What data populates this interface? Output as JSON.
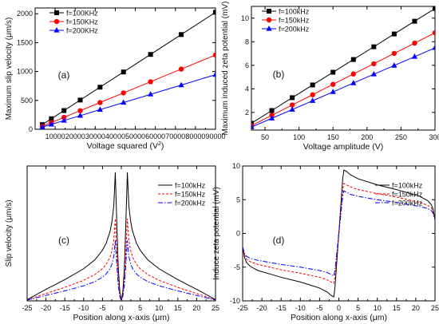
{
  "chart_data": [
    {
      "type": "line",
      "panel_label": "(a)",
      "xlabel": "Voltage squared (V",
      "xlabel_sup": "2",
      "xlabel_end": ")",
      "ylabel": "Maximum slip velocity (μm/s)",
      "xlim": [
        0,
        90000
      ],
      "ylim": [
        0,
        2100
      ],
      "xticks": [
        10000,
        20000,
        30000,
        40000,
        50000,
        60000,
        70000,
        80000,
        90000
      ],
      "yticks": [
        0,
        500,
        1000,
        1500,
        2000
      ],
      "legend": "top-left",
      "series": [
        {
          "name": "f=100KHz",
          "color": "#000000",
          "marker": "square",
          "x": [
            3600,
            8100,
            14400,
            22500,
            32400,
            44100,
            57600,
            72900,
            90000
          ],
          "y": [
            81,
            182,
            324,
            506,
            729,
            992,
            1296,
            1640,
            2025
          ]
        },
        {
          "name": "f=150KHz",
          "color": "#ff0000",
          "marker": "circle",
          "x": [
            3600,
            8100,
            14400,
            22500,
            32400,
            44100,
            57600,
            72900,
            90000
          ],
          "y": [
            51,
            116,
            206,
            322,
            463,
            630,
            823,
            1042,
            1286
          ]
        },
        {
          "name": "f=200KHz",
          "color": "#0000ff",
          "marker": "triangle",
          "x": [
            3600,
            8100,
            14400,
            22500,
            32400,
            44100,
            57600,
            72900,
            90000
          ],
          "y": [
            38,
            85,
            151,
            236,
            340,
            463,
            605,
            765,
            945
          ]
        }
      ]
    },
    {
      "type": "line",
      "panel_label": "(b)",
      "xlabel": "Voltage amplitude (V)",
      "ylabel": "Maximum induced zeta potential (mV)",
      "xlim": [
        30,
        300
      ],
      "ylim": [
        0.5,
        11
      ],
      "xticks": [
        50,
        100,
        150,
        200,
        250,
        300
      ],
      "yticks": [
        2,
        4,
        6,
        8,
        10
      ],
      "legend": "top-left",
      "series": [
        {
          "name": "f=100kHz",
          "color": "#000000",
          "marker": "square",
          "x": [
            30,
            60,
            90,
            120,
            150,
            180,
            210,
            240,
            270,
            300
          ],
          "y": [
            1.08,
            2.16,
            3.25,
            4.33,
            5.41,
            6.49,
            7.57,
            8.66,
            9.74,
            10.82
          ]
        },
        {
          "name": "f=150kHz",
          "color": "#ff0000",
          "marker": "circle",
          "x": [
            30,
            60,
            90,
            120,
            150,
            180,
            210,
            240,
            270,
            300
          ],
          "y": [
            0.88,
            1.75,
            2.63,
            3.5,
            4.38,
            5.26,
            6.13,
            7.01,
            7.88,
            8.76
          ]
        },
        {
          "name": "f=200kHz",
          "color": "#0000ff",
          "marker": "triangle",
          "x": [
            30,
            60,
            90,
            120,
            150,
            180,
            210,
            240,
            270,
            300
          ],
          "y": [
            0.75,
            1.5,
            2.24,
            2.99,
            3.74,
            4.49,
            5.24,
            5.98,
            6.73,
            7.48
          ]
        }
      ]
    },
    {
      "type": "line",
      "panel_label": "(c)",
      "xlabel": "Position along x-axis (μm)",
      "ylabel": "Slip velocity (μm/s)",
      "xlim": [
        -25,
        25
      ],
      "ylim": [
        0,
        2100
      ],
      "xticks": [
        -25,
        -20,
        -15,
        -10,
        -5,
        0,
        5,
        10,
        15,
        20,
        25
      ],
      "yticks": [],
      "legend": "top-right",
      "series": [
        {
          "name": "f=100kHz",
          "color": "#000000",
          "dash": "",
          "x": [
            -25,
            -20,
            -15,
            -10,
            -7,
            -5,
            -4,
            -3,
            -2.5,
            -2,
            -1.6,
            -1.2,
            -0.8,
            -0.4,
            0,
            0.4,
            0.8,
            1.2,
            1.6,
            2,
            2.5,
            3,
            4,
            5,
            7,
            10,
            15,
            20,
            25
          ],
          "y": [
            20,
            180,
            330,
            500,
            640,
            790,
            900,
            1080,
            1230,
            1480,
            2000,
            1200,
            500,
            150,
            0,
            150,
            500,
            1200,
            2000,
            1480,
            1230,
            1080,
            900,
            790,
            640,
            500,
            330,
            180,
            20
          ]
        },
        {
          "name": "f=150kHz",
          "color": "#ff0000",
          "dash": "3,2",
          "x": [
            -25,
            -20,
            -15,
            -10,
            -7,
            -5,
            -4,
            -3,
            -2.5,
            -2,
            -1.6,
            -1.2,
            -0.8,
            -0.4,
            0,
            0.4,
            0.8,
            1.2,
            1.6,
            2,
            2.5,
            3,
            4,
            5,
            7,
            10,
            15,
            20,
            25
          ],
          "y": [
            15,
            115,
            210,
            320,
            410,
            500,
            570,
            680,
            780,
            940,
            1280,
            760,
            320,
            95,
            0,
            95,
            320,
            760,
            1280,
            940,
            780,
            680,
            570,
            500,
            410,
            320,
            210,
            115,
            15
          ]
        },
        {
          "name": "f=200kHz",
          "color": "#0000ff",
          "dash": "6,2,1.5,2",
          "x": [
            -25,
            -20,
            -15,
            -10,
            -7,
            -5,
            -4,
            -3,
            -2.5,
            -2,
            -1.6,
            -1.2,
            -0.8,
            -0.4,
            0,
            0.4,
            0.8,
            1.2,
            1.6,
            2,
            2.5,
            3,
            4,
            5,
            7,
            10,
            15,
            20,
            25
          ],
          "y": [
            12,
            85,
            155,
            235,
            300,
            370,
            420,
            500,
            570,
            690,
            940,
            560,
            235,
            70,
            0,
            70,
            235,
            560,
            940,
            690,
            570,
            500,
            420,
            370,
            300,
            235,
            155,
            85,
            12
          ]
        }
      ]
    },
    {
      "type": "line",
      "panel_label": "(d)",
      "xlabel": "Position along x-axis (μm)",
      "ylabel": "Induce zeta potential (mV)",
      "xlim": [
        -25,
        25
      ],
      "ylim": [
        -10,
        10
      ],
      "xticks": [
        -25,
        -20,
        -15,
        -10,
        -5,
        0,
        5,
        10,
        15,
        20,
        25
      ],
      "yticks": [
        -10,
        -5,
        0,
        5,
        10
      ],
      "legend": "top-right",
      "series": [
        {
          "name": "f=100kHz",
          "color": "#000000",
          "dash": "",
          "x": [
            -25,
            -24.5,
            -24,
            -23,
            -21,
            -18,
            -15,
            -10,
            -5,
            -3,
            -2,
            -1.3,
            -1.0,
            -0.5,
            0,
            0.5,
            1.0,
            1.3,
            2,
            3,
            5,
            10,
            15,
            18,
            21,
            23,
            24,
            24.5,
            25
          ],
          "y": [
            -2.0,
            -3.6,
            -4.3,
            -4.9,
            -5.5,
            -6.0,
            -6.5,
            -7.2,
            -8.1,
            -8.7,
            -9.2,
            -9.4,
            -8.0,
            -4.0,
            0,
            4.0,
            8.0,
            9.4,
            9.2,
            8.7,
            8.1,
            7.2,
            6.5,
            6.0,
            5.5,
            4.9,
            4.3,
            3.6,
            2.0
          ]
        },
        {
          "name": "f=150kHz",
          "color": "#ff0000",
          "dash": "3,2",
          "x": [
            -25,
            -24.5,
            -24,
            -23,
            -21,
            -18,
            -15,
            -10,
            -5,
            -3,
            -2,
            -1.3,
            -1.0,
            -0.5,
            0,
            0.5,
            1.0,
            1.3,
            2,
            3,
            5,
            10,
            15,
            18,
            21,
            23,
            24,
            24.5,
            25
          ],
          "y": [
            -2.0,
            -3.2,
            -3.8,
            -4.2,
            -4.6,
            -5.0,
            -5.4,
            -5.9,
            -6.5,
            -6.9,
            -7.2,
            -7.4,
            -6.3,
            -3.2,
            0,
            3.2,
            6.3,
            7.4,
            7.2,
            6.9,
            6.5,
            5.9,
            5.4,
            5.0,
            4.6,
            4.2,
            3.8,
            3.2,
            2.0
          ]
        },
        {
          "name": "f=200kHz",
          "color": "#0000ff",
          "dash": "6,2,1.5,2",
          "x": [
            -25,
            -24.5,
            -24,
            -23,
            -21,
            -18,
            -15,
            -10,
            -5,
            -3,
            -2,
            -1.3,
            -1.0,
            -0.5,
            0,
            0.5,
            1.0,
            1.3,
            2,
            3,
            5,
            10,
            15,
            18,
            21,
            23,
            24,
            24.5,
            25
          ],
          "y": [
            -2.0,
            -3.0,
            -3.4,
            -3.7,
            -4.0,
            -4.3,
            -4.6,
            -5.0,
            -5.5,
            -5.8,
            -6.1,
            -6.3,
            -5.4,
            -2.7,
            0,
            2.7,
            5.4,
            6.3,
            6.1,
            5.8,
            5.5,
            5.0,
            4.6,
            4.3,
            4.0,
            3.7,
            3.4,
            3.0,
            2.0
          ]
        }
      ]
    }
  ]
}
